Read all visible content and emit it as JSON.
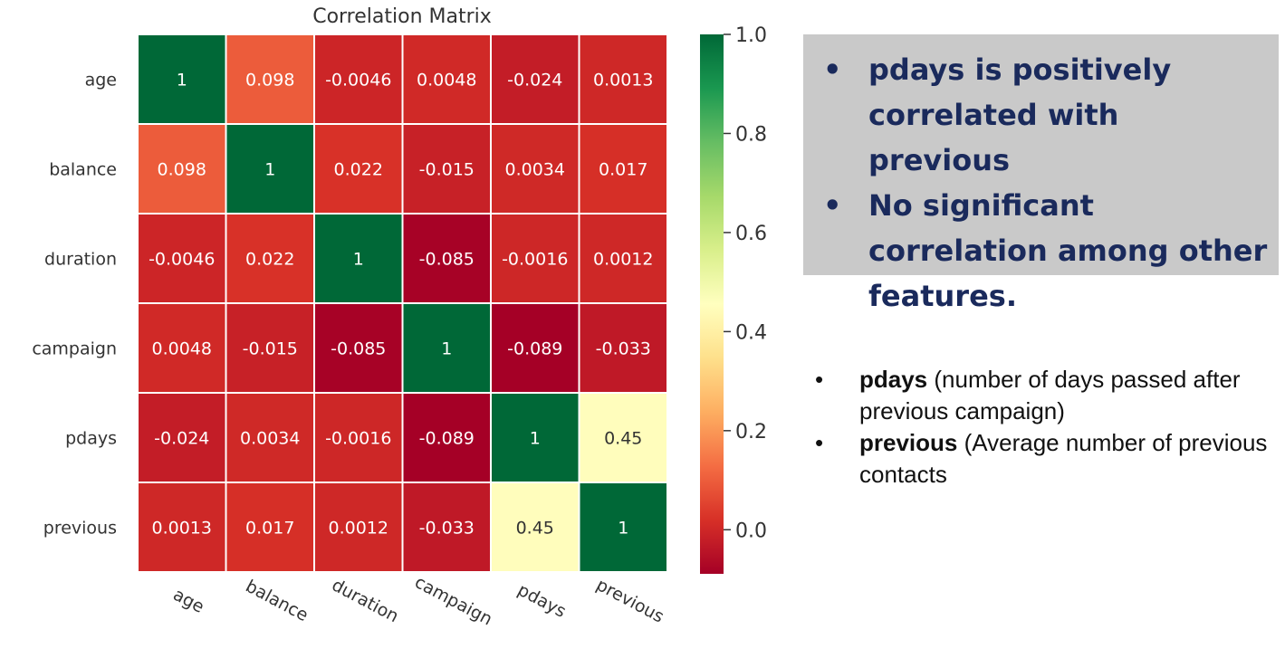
{
  "chart_data": {
    "type": "heatmap",
    "title": "Correlation Matrix",
    "labels": [
      "age",
      "balance",
      "duration",
      "campaign",
      "pdays",
      "previous"
    ],
    "matrix": [
      [
        1,
        0.098,
        -0.0046,
        0.0048,
        -0.024,
        0.0013
      ],
      [
        0.098,
        1,
        0.022,
        -0.015,
        0.0034,
        0.017
      ],
      [
        -0.0046,
        0.022,
        1,
        -0.085,
        -0.0016,
        0.0012
      ],
      [
        0.0048,
        -0.015,
        -0.085,
        1,
        -0.089,
        -0.033
      ],
      [
        -0.024,
        0.0034,
        -0.0016,
        -0.089,
        1,
        0.45
      ],
      [
        0.0013,
        0.017,
        0.0012,
        -0.033,
        0.45,
        1
      ]
    ],
    "annotations": [
      [
        "1",
        "0.098",
        "-0.0046",
        "0.0048",
        "-0.024",
        "0.0013"
      ],
      [
        "0.098",
        "1",
        "0.022",
        "-0.015",
        "0.0034",
        "0.017"
      ],
      [
        "-0.0046",
        "0.022",
        "1",
        "-0.085",
        "-0.0016",
        "0.0012"
      ],
      [
        "0.0048",
        "-0.015",
        "-0.085",
        "1",
        "-0.089",
        "-0.033"
      ],
      [
        "-0.024",
        "0.0034",
        "-0.0016",
        "-0.089",
        "1",
        "0.45"
      ],
      [
        "0.0013",
        "0.017",
        "0.0012",
        "-0.033",
        "0.45",
        "1"
      ]
    ],
    "colormap": "RdYlGn",
    "vmin": -0.089,
    "vmax": 1.0,
    "colorbar_ticks": [
      {
        "value": 1.0,
        "label": "1.0"
      },
      {
        "value": 0.8,
        "label": "0.8"
      },
      {
        "value": 0.6,
        "label": "0.6"
      },
      {
        "value": 0.4,
        "label": "0.4"
      },
      {
        "value": 0.2,
        "label": "0.2"
      },
      {
        "value": 0.0,
        "label": "0.0"
      }
    ],
    "grid": true,
    "legend": "colorbar-right"
  },
  "callout": {
    "bullet": "•",
    "points": [
      " pdays is positively correlated with previous",
      "No significant correlation among other features."
    ]
  },
  "notes": {
    "bullet": "•",
    "items": [
      {
        "term": "pdays",
        "desc": " (number of days passed after previous campaign)"
      },
      {
        "term": "previous",
        "desc": " (Average number of previous contacts"
      }
    ]
  },
  "colors": {
    "callout_bg": "#c9c9c9",
    "callout_text": "#1a2a5c",
    "grid_line": "#ffffff"
  }
}
